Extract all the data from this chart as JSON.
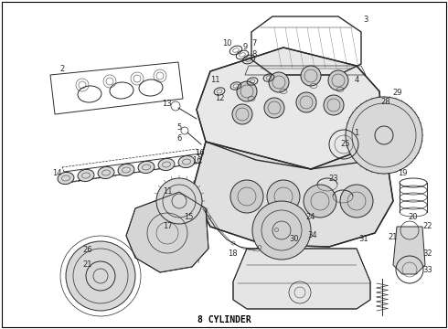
{
  "caption": "8 CYLINDER",
  "bg_color": "#f0f0f0",
  "fig_width": 4.9,
  "fig_height": 3.6,
  "dpi": 100,
  "line_color": "#2a2a2a",
  "lw_heavy": 1.0,
  "lw_med": 0.7,
  "lw_light": 0.5,
  "lw_thin": 0.35
}
